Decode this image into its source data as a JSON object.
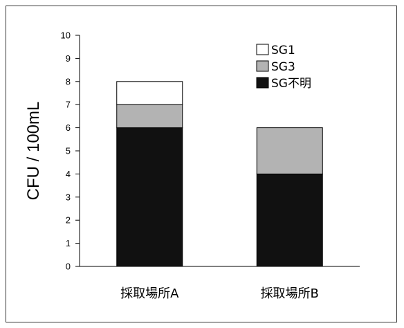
{
  "chart_data": {
    "type": "bar",
    "stacked": true,
    "categories": [
      "採取場所A",
      "採取場所B"
    ],
    "series": [
      {
        "name": "SG不明",
        "values": [
          6,
          4
        ],
        "color": "#111111"
      },
      {
        "name": "SG3",
        "values": [
          1,
          2
        ],
        "color": "#b3b3b3"
      },
      {
        "name": "SG1",
        "values": [
          1,
          0
        ],
        "color": "#ffffff"
      }
    ],
    "legend_order": [
      "SG1",
      "SG3",
      "SG不明"
    ],
    "legend_position": "top-right",
    "ylabel": "CFU / 100mL",
    "xlabel": "",
    "title": "",
    "ylim": [
      0,
      10
    ],
    "yticks": [
      0,
      1,
      2,
      3,
      4,
      5,
      6,
      7,
      8,
      9,
      10
    ],
    "grid": false
  }
}
